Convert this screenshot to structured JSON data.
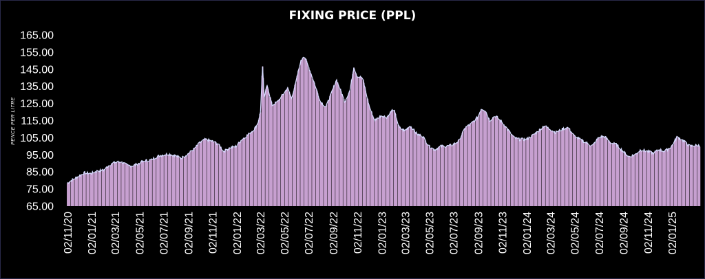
{
  "chart_data": {
    "type": "bar",
    "title": "FIXING PRICE (PPL)",
    "ylabel": "PENCE PER LITRE",
    "xlabel": "",
    "ylim": [
      65,
      165
    ],
    "yticks": [
      "165.00",
      "155.00",
      "145.00",
      "135.00",
      "125.00",
      "115.00",
      "105.00",
      "95.00",
      "85.00",
      "75.00",
      "65.00"
    ],
    "xticks": [
      "02/11/20",
      "02/01/21",
      "02/03/21",
      "02/05/21",
      "02/07/21",
      "02/09/21",
      "02/11/21",
      "02/01/22",
      "02/03/22",
      "02/05/22",
      "02/07/22",
      "02/09/22",
      "02/11/22",
      "02/01/23",
      "02/03/23",
      "02/05/23",
      "02/07/23",
      "02/09/23",
      "02/11/23",
      "02/01/24",
      "02/03/24",
      "02/05/24",
      "02/07/24",
      "02/09/24",
      "02/11/24",
      "02/01/25"
    ],
    "x_range": [
      "02/11/20",
      "14/03/25"
    ],
    "grid": false,
    "legend": "none",
    "series": [
      {
        "points": [
          [
            "02/11/20",
            78.5
          ],
          [
            "15/11/20",
            80.5
          ],
          [
            "30/11/20",
            82.5
          ],
          [
            "15/12/20",
            84.5
          ],
          [
            "31/12/20",
            84
          ],
          [
            "15/01/21",
            85.5
          ],
          [
            "01/02/21",
            86
          ],
          [
            "15/02/21",
            89
          ],
          [
            "01/03/21",
            90.5
          ],
          [
            "15/03/21",
            91
          ],
          [
            "01/04/21",
            89
          ],
          [
            "15/04/21",
            88.5
          ],
          [
            "01/05/21",
            90
          ],
          [
            "15/05/21",
            91.5
          ],
          [
            "01/06/21",
            92
          ],
          [
            "15/06/21",
            94
          ],
          [
            "01/07/21",
            95
          ],
          [
            "15/07/21",
            95.5
          ],
          [
            "01/08/21",
            94.5
          ],
          [
            "15/08/21",
            93
          ],
          [
            "01/09/21",
            95.5
          ],
          [
            "15/09/21",
            98
          ],
          [
            "01/10/21",
            102
          ],
          [
            "15/10/21",
            104
          ],
          [
            "01/11/21",
            103
          ],
          [
            "15/11/21",
            101.5
          ],
          [
            "01/12/21",
            97
          ],
          [
            "15/12/21",
            99
          ],
          [
            "01/01/22",
            100
          ],
          [
            "15/01/22",
            104
          ],
          [
            "01/02/22",
            107
          ],
          [
            "15/02/22",
            110
          ],
          [
            "24/02/22",
            113
          ],
          [
            "04/03/22",
            121
          ],
          [
            "08/03/22",
            148.5
          ],
          [
            "12/03/22",
            128
          ],
          [
            "20/03/22",
            136
          ],
          [
            "01/04/22",
            124
          ],
          [
            "15/04/22",
            126
          ],
          [
            "01/05/22",
            131
          ],
          [
            "10/05/22",
            134
          ],
          [
            "20/05/22",
            128
          ],
          [
            "01/06/22",
            138
          ],
          [
            "10/06/22",
            148
          ],
          [
            "20/06/22",
            153.5
          ],
          [
            "01/07/22",
            147
          ],
          [
            "15/07/22",
            138
          ],
          [
            "01/08/22",
            126
          ],
          [
            "15/08/22",
            123
          ],
          [
            "01/09/22",
            133
          ],
          [
            "10/09/22",
            139
          ],
          [
            "20/09/22",
            133
          ],
          [
            "01/10/22",
            126
          ],
          [
            "15/10/22",
            133
          ],
          [
            "24/10/22",
            146.5
          ],
          [
            "01/11/22",
            141
          ],
          [
            "15/11/22",
            140
          ],
          [
            "01/12/22",
            124
          ],
          [
            "15/12/22",
            115
          ],
          [
            "01/01/23",
            118
          ],
          [
            "15/01/23",
            117
          ],
          [
            "01/02/23",
            122
          ],
          [
            "15/02/23",
            111
          ],
          [
            "01/03/23",
            109
          ],
          [
            "15/03/23",
            112
          ],
          [
            "01/04/23",
            107
          ],
          [
            "15/04/23",
            106
          ],
          [
            "01/05/23",
            100
          ],
          [
            "15/05/23",
            98
          ],
          [
            "01/06/23",
            100
          ],
          [
            "15/06/23",
            100
          ],
          [
            "01/07/23",
            101
          ],
          [
            "15/07/23",
            103
          ],
          [
            "01/08/23",
            111
          ],
          [
            "15/08/23",
            113
          ],
          [
            "01/09/23",
            117
          ],
          [
            "10/09/23",
            122
          ],
          [
            "20/09/23",
            121
          ],
          [
            "01/10/23",
            115
          ],
          [
            "15/10/23",
            118
          ],
          [
            "01/11/23",
            114
          ],
          [
            "15/11/23",
            110
          ],
          [
            "01/12/23",
            105
          ],
          [
            "15/12/23",
            104
          ],
          [
            "01/01/24",
            104
          ],
          [
            "15/01/24",
            106
          ],
          [
            "01/02/24",
            109
          ],
          [
            "15/02/24",
            112
          ],
          [
            "01/03/24",
            110
          ],
          [
            "15/03/24",
            108
          ],
          [
            "01/04/24",
            110
          ],
          [
            "15/04/24",
            111
          ],
          [
            "01/05/24",
            106
          ],
          [
            "15/05/24",
            104
          ],
          [
            "01/06/24",
            102
          ],
          [
            "15/06/24",
            100
          ],
          [
            "01/07/24",
            105
          ],
          [
            "15/07/24",
            106
          ],
          [
            "01/08/24",
            102
          ],
          [
            "15/08/24",
            101
          ],
          [
            "01/09/24",
            97
          ],
          [
            "15/09/24",
            94
          ],
          [
            "01/10/24",
            95
          ],
          [
            "15/10/24",
            98
          ],
          [
            "01/11/24",
            97
          ],
          [
            "15/11/24",
            96
          ],
          [
            "01/12/24",
            98
          ],
          [
            "15/12/24",
            97
          ],
          [
            "01/01/25",
            100
          ],
          [
            "15/01/25",
            105.5
          ],
          [
            "01/02/25",
            103
          ],
          [
            "15/02/25",
            100
          ],
          [
            "01/03/25",
            100.5
          ],
          [
            "14/03/25",
            100.5
          ]
        ]
      }
    ],
    "colors": {
      "bar_fill": "#c7a0d0",
      "bar_gap": "#0b0b0b",
      "outline": "#d6dcff",
      "background": "#000000",
      "text": "#ffffff"
    }
  }
}
